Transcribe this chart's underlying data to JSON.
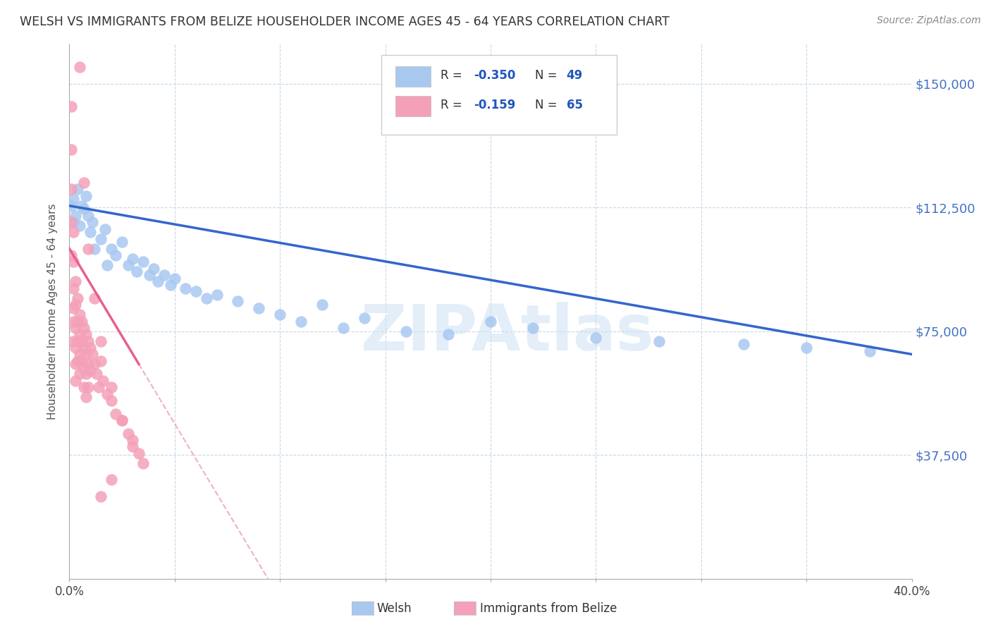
{
  "title": "WELSH VS IMMIGRANTS FROM BELIZE HOUSEHOLDER INCOME AGES 45 - 64 YEARS CORRELATION CHART",
  "source": "Source: ZipAtlas.com",
  "ylabel": "Householder Income Ages 45 - 64 years",
  "ytick_labels": [
    "$37,500",
    "$75,000",
    "$112,500",
    "$150,000"
  ],
  "ytick_values": [
    37500,
    75000,
    112500,
    150000
  ],
  "xlim": [
    0.0,
    0.4
  ],
  "ylim": [
    0,
    162000
  ],
  "legend_r_welsh": "-0.350",
  "legend_n_welsh": "49",
  "legend_r_belize": "-0.159",
  "legend_n_belize": "65",
  "welsh_color": "#A8C8F0",
  "belize_color": "#F4A0B8",
  "trend_welsh_color": "#3366CC",
  "trend_belize_color": "#E86090",
  "background_color": "#FFFFFF",
  "welsh_scatter_x": [
    0.001,
    0.002,
    0.002,
    0.003,
    0.004,
    0.005,
    0.006,
    0.007,
    0.008,
    0.009,
    0.01,
    0.011,
    0.012,
    0.015,
    0.017,
    0.018,
    0.02,
    0.022,
    0.025,
    0.028,
    0.03,
    0.032,
    0.035,
    0.038,
    0.04,
    0.042,
    0.045,
    0.048,
    0.05,
    0.055,
    0.06,
    0.065,
    0.07,
    0.08,
    0.09,
    0.1,
    0.11,
    0.12,
    0.13,
    0.14,
    0.16,
    0.18,
    0.2,
    0.22,
    0.25,
    0.28,
    0.32,
    0.35,
    0.38
  ],
  "welsh_scatter_y": [
    113000,
    108000,
    115000,
    110000,
    118000,
    107000,
    113000,
    112000,
    116000,
    110000,
    105000,
    108000,
    100000,
    103000,
    106000,
    95000,
    100000,
    98000,
    102000,
    95000,
    97000,
    93000,
    96000,
    92000,
    94000,
    90000,
    92000,
    89000,
    91000,
    88000,
    87000,
    85000,
    86000,
    84000,
    82000,
    80000,
    78000,
    83000,
    76000,
    79000,
    75000,
    74000,
    78000,
    76000,
    73000,
    72000,
    71000,
    70000,
    69000
  ],
  "belize_scatter_x": [
    0.001,
    0.001,
    0.001,
    0.001,
    0.001,
    0.002,
    0.002,
    0.002,
    0.002,
    0.002,
    0.002,
    0.003,
    0.003,
    0.003,
    0.003,
    0.003,
    0.003,
    0.004,
    0.004,
    0.004,
    0.004,
    0.005,
    0.005,
    0.005,
    0.005,
    0.006,
    0.006,
    0.006,
    0.007,
    0.007,
    0.007,
    0.007,
    0.008,
    0.008,
    0.008,
    0.008,
    0.009,
    0.009,
    0.009,
    0.01,
    0.01,
    0.011,
    0.012,
    0.013,
    0.014,
    0.015,
    0.016,
    0.018,
    0.02,
    0.022,
    0.025,
    0.028,
    0.03,
    0.033,
    0.005,
    0.007,
    0.009,
    0.012,
    0.015,
    0.02,
    0.025,
    0.03,
    0.035,
    0.015,
    0.02
  ],
  "belize_scatter_y": [
    143000,
    130000,
    118000,
    108000,
    98000,
    105000,
    96000,
    88000,
    82000,
    78000,
    72000,
    90000,
    83000,
    76000,
    70000,
    65000,
    60000,
    85000,
    78000,
    72000,
    66000,
    80000,
    74000,
    68000,
    62000,
    78000,
    72000,
    66000,
    76000,
    70000,
    64000,
    58000,
    74000,
    68000,
    62000,
    55000,
    72000,
    65000,
    58000,
    70000,
    63000,
    68000,
    65000,
    62000,
    58000,
    66000,
    60000,
    56000,
    54000,
    50000,
    48000,
    44000,
    42000,
    38000,
    155000,
    120000,
    100000,
    85000,
    72000,
    58000,
    48000,
    40000,
    35000,
    25000,
    30000
  ]
}
